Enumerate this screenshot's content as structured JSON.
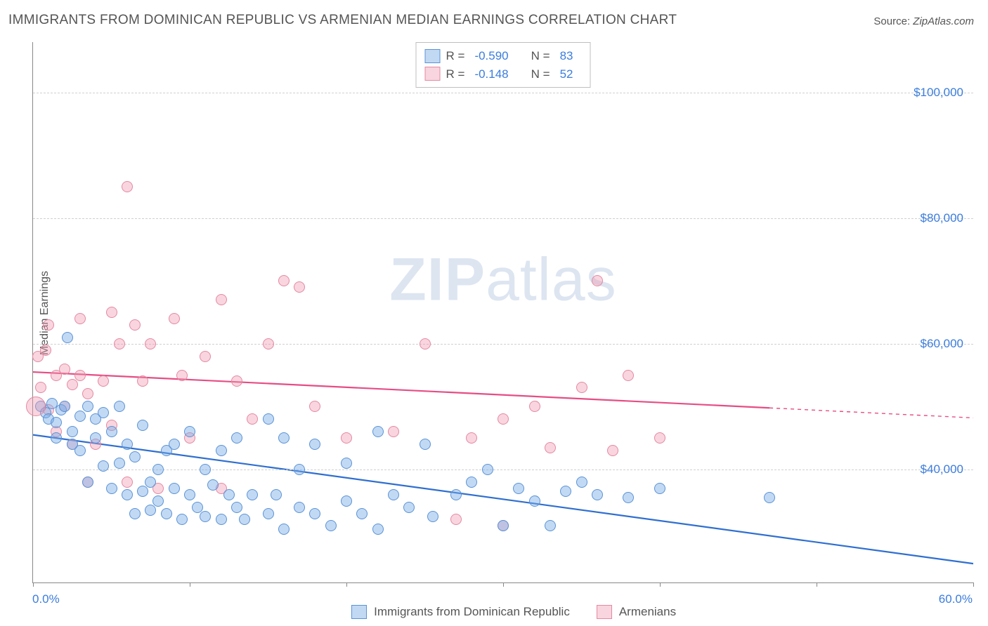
{
  "title": "IMMIGRANTS FROM DOMINICAN REPUBLIC VS ARMENIAN MEDIAN EARNINGS CORRELATION CHART",
  "source_label": "Source:",
  "source_value": "ZipAtlas.com",
  "ylabel": "Median Earnings",
  "watermark_a": "ZIP",
  "watermark_b": "atlas",
  "chart": {
    "type": "scatter",
    "background_color": "#ffffff",
    "grid_color": "#d0d0d0",
    "axis_color": "#888888",
    "xlim": [
      0,
      60
    ],
    "ylim": [
      22000,
      108000
    ],
    "x_start_label": "0.0%",
    "x_end_label": "60.0%",
    "x_tick_positions": [
      0,
      10,
      20,
      30,
      40,
      50,
      60
    ],
    "y_ticks": [
      {
        "value": 40000,
        "label": "$40,000"
      },
      {
        "value": 60000,
        "label": "$60,000"
      },
      {
        "value": 80000,
        "label": "$80,000"
      },
      {
        "value": 100000,
        "label": "$100,000"
      }
    ],
    "marker_radius": 8,
    "marker_border_width": 1.2,
    "line_width": 2.2
  },
  "series": [
    {
      "key": "dominican",
      "label": "Immigrants from Dominican Republic",
      "fill_color": "rgba(120,170,230,0.45)",
      "stroke_color": "#5a93d6",
      "line_color": "#2f6fd0",
      "R_label": "R =",
      "R_value": "-0.590",
      "N_label": "N =",
      "N_value": "83",
      "trend": {
        "x1": 0,
        "y1": 45500,
        "x2": 60,
        "y2": 25000,
        "dash_from_x": null
      },
      "points": [
        [
          0.5,
          50000
        ],
        [
          0.8,
          49000
        ],
        [
          1.0,
          48000
        ],
        [
          1.2,
          50500
        ],
        [
          1.5,
          47500
        ],
        [
          1.5,
          45000
        ],
        [
          1.8,
          49500
        ],
        [
          2.0,
          50000
        ],
        [
          2.2,
          61000
        ],
        [
          2.5,
          46000
        ],
        [
          2.5,
          44000
        ],
        [
          3.0,
          48500
        ],
        [
          3.0,
          43000
        ],
        [
          3.5,
          50000
        ],
        [
          3.5,
          38000
        ],
        [
          4.0,
          48000
        ],
        [
          4.0,
          45000
        ],
        [
          4.5,
          49000
        ],
        [
          4.5,
          40500
        ],
        [
          5.0,
          46000
        ],
        [
          5.0,
          37000
        ],
        [
          5.5,
          41000
        ],
        [
          5.5,
          50000
        ],
        [
          6.0,
          44000
        ],
        [
          6.0,
          36000
        ],
        [
          6.5,
          42000
        ],
        [
          6.5,
          33000
        ],
        [
          7.0,
          47000
        ],
        [
          7.0,
          36500
        ],
        [
          7.5,
          38000
        ],
        [
          7.5,
          33500
        ],
        [
          8.0,
          40000
        ],
        [
          8.0,
          35000
        ],
        [
          8.5,
          43000
        ],
        [
          8.5,
          33000
        ],
        [
          9.0,
          37000
        ],
        [
          9.0,
          44000
        ],
        [
          9.5,
          32000
        ],
        [
          10.0,
          46000
        ],
        [
          10.0,
          36000
        ],
        [
          10.5,
          34000
        ],
        [
          11.0,
          40000
        ],
        [
          11.0,
          32500
        ],
        [
          11.5,
          37500
        ],
        [
          12.0,
          43000
        ],
        [
          12.0,
          32000
        ],
        [
          12.5,
          36000
        ],
        [
          13.0,
          45000
        ],
        [
          13.0,
          34000
        ],
        [
          13.5,
          32000
        ],
        [
          14.0,
          36000
        ],
        [
          15.0,
          48000
        ],
        [
          15.0,
          33000
        ],
        [
          15.5,
          36000
        ],
        [
          16.0,
          45000
        ],
        [
          16.0,
          30500
        ],
        [
          17.0,
          40000
        ],
        [
          17.0,
          34000
        ],
        [
          18.0,
          44000
        ],
        [
          18.0,
          33000
        ],
        [
          19.0,
          31000
        ],
        [
          20.0,
          41000
        ],
        [
          20.0,
          35000
        ],
        [
          21.0,
          33000
        ],
        [
          22.0,
          46000
        ],
        [
          22.0,
          30500
        ],
        [
          23.0,
          36000
        ],
        [
          24.0,
          34000
        ],
        [
          25.0,
          44000
        ],
        [
          25.5,
          32500
        ],
        [
          27.0,
          36000
        ],
        [
          28.0,
          38000
        ],
        [
          29.0,
          40000
        ],
        [
          30.0,
          31000
        ],
        [
          31.0,
          37000
        ],
        [
          32.0,
          35000
        ],
        [
          33.0,
          31000
        ],
        [
          34.0,
          36500
        ],
        [
          35.0,
          38000
        ],
        [
          36.0,
          36000
        ],
        [
          38.0,
          35500
        ],
        [
          40.0,
          37000
        ],
        [
          47.0,
          35500
        ]
      ]
    },
    {
      "key": "armenian",
      "label": "Armenians",
      "fill_color": "rgba(240,150,175,0.40)",
      "stroke_color": "#e489a2",
      "line_color": "#e64d84",
      "R_label": "R =",
      "R_value": "-0.148",
      "N_label": "N =",
      "N_value": "52",
      "trend": {
        "x1": 0,
        "y1": 55500,
        "x2": 60,
        "y2": 48200,
        "dash_from_x": 47
      },
      "points": [
        [
          0.3,
          58000
        ],
        [
          0.5,
          53000
        ],
        [
          0.8,
          59000
        ],
        [
          1.0,
          49500
        ],
        [
          1.0,
          63000
        ],
        [
          1.5,
          55000
        ],
        [
          1.5,
          46000
        ],
        [
          2.0,
          56000
        ],
        [
          2.0,
          50000
        ],
        [
          2.5,
          53500
        ],
        [
          2.5,
          44000
        ],
        [
          3.0,
          55000
        ],
        [
          3.0,
          64000
        ],
        [
          3.5,
          52000
        ],
        [
          3.5,
          38000
        ],
        [
          4.0,
          44000
        ],
        [
          4.5,
          54000
        ],
        [
          5.0,
          65000
        ],
        [
          5.0,
          47000
        ],
        [
          5.5,
          60000
        ],
        [
          6.0,
          85000
        ],
        [
          6.0,
          38000
        ],
        [
          6.5,
          63000
        ],
        [
          7.0,
          54000
        ],
        [
          7.5,
          60000
        ],
        [
          8.0,
          37000
        ],
        [
          9.0,
          64000
        ],
        [
          9.5,
          55000
        ],
        [
          10.0,
          45000
        ],
        [
          11.0,
          58000
        ],
        [
          12.0,
          67000
        ],
        [
          12.0,
          37000
        ],
        [
          13.0,
          54000
        ],
        [
          14.0,
          48000
        ],
        [
          15.0,
          60000
        ],
        [
          16.0,
          70000
        ],
        [
          17.0,
          69000
        ],
        [
          18.0,
          50000
        ],
        [
          20.0,
          45000
        ],
        [
          23.0,
          46000
        ],
        [
          25.0,
          60000
        ],
        [
          27.0,
          32000
        ],
        [
          28.0,
          45000
        ],
        [
          30.0,
          48000
        ],
        [
          30.0,
          31000
        ],
        [
          32.0,
          50000
        ],
        [
          33.0,
          43500
        ],
        [
          35.0,
          53000
        ],
        [
          36.0,
          70000
        ],
        [
          37.0,
          43000
        ],
        [
          38.0,
          55000
        ],
        [
          40.0,
          45000
        ]
      ]
    }
  ]
}
